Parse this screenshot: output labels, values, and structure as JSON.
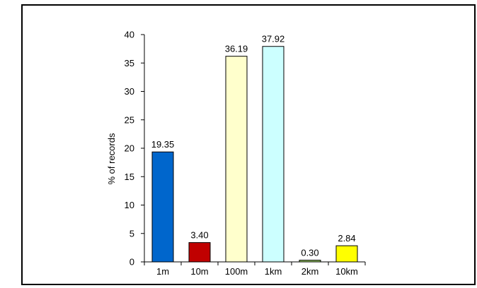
{
  "chart_data": {
    "type": "bar",
    "categories": [
      "1m",
      "10m",
      "100m",
      "1km",
      "2km",
      "10km"
    ],
    "values": [
      19.35,
      3.4,
      36.19,
      37.92,
      0.3,
      2.84
    ],
    "data_labels": [
      "19.35",
      "3.40",
      "36.19",
      "37.92",
      "0.30",
      "2.84"
    ],
    "bar_colors": [
      "#0066CC",
      "#C00000",
      "#FFFFCC",
      "#CCFFFF",
      "#99CC66",
      "#FFFF00"
    ],
    "title": "",
    "xlabel": "",
    "ylabel": "% of records",
    "ylim": [
      0,
      40
    ],
    "yticks": [
      0,
      5,
      10,
      15,
      20,
      25,
      30,
      35,
      40
    ],
    "ytick_labels": [
      "0",
      "5",
      "10",
      "15",
      "20",
      "25",
      "30",
      "35",
      "40"
    ],
    "grid": false,
    "legend": "none"
  }
}
